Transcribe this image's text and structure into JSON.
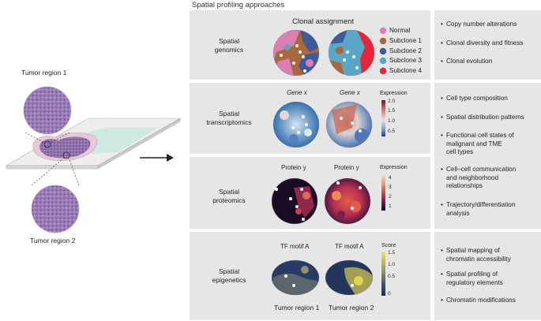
{
  "header": {
    "title": "Spatial profiling approaches"
  },
  "tissue": {
    "region1_label": "Tumor region 1",
    "region2_label": "Tumor region 2"
  },
  "rows": [
    {
      "label_line1": "Spatial",
      "label_line2": "genomics"
    },
    {
      "label_line1": "Spatial",
      "label_line2": "transcriptomics"
    },
    {
      "label_line1": "Spatial",
      "label_line2": "proteomics"
    },
    {
      "label_line1": "Spatial",
      "label_line2": "epigenetics"
    }
  ],
  "genomics": {
    "title": "Clonal assignment",
    "legend": [
      {
        "label": "Normal",
        "color": "#d97fb6"
      },
      {
        "label": "Subclone 1",
        "color": "#a9673a"
      },
      {
        "label": "Subclone 2",
        "color": "#3f5a9a"
      },
      {
        "label": "Subclone 3",
        "color": "#5aa6c9"
      },
      {
        "label": "Subclone 4",
        "color": "#e3263a"
      }
    ]
  },
  "transcriptomics": {
    "panel1_title": "Gene x",
    "panel2_title": "Gene x",
    "colorbar_title": "Expression",
    "ticks": [
      "2.0",
      "1.5",
      "1.0",
      "0.5"
    ]
  },
  "proteomics": {
    "panel1_title": "Protein y",
    "panel2_title": "Protein y",
    "colorbar_title": "Expression",
    "ticks": [
      "4",
      "3",
      "2",
      "1"
    ]
  },
  "epigenetics": {
    "panel1_title": "TF motif A",
    "panel2_title": "TF motif A",
    "colorbar_title": "Score",
    "ticks": [
      "1.5",
      "1.0",
      "0.5",
      "0"
    ],
    "bottom_label1": "Tumor region 1",
    "bottom_label2": "Tumor region 2"
  },
  "notes": {
    "genomics": [
      {
        "line1": "Copy number alterations"
      },
      {
        "line1": "Clonal diversity and fitness"
      },
      {
        "line1": "Clonal evolution"
      }
    ],
    "transcriptomics_proteomics": [
      {
        "line1": "Cell type composition"
      },
      {
        "line1": "Spatial distribution patterns"
      },
      {
        "line1": "Functional cell states of",
        "line2": "malignant and TME",
        "line3": "cell types"
      },
      {
        "line1": "Cell–cell communication",
        "line2": "and neighborhood",
        "line3": "relationships"
      },
      {
        "line1": "Trajectory/differentiation",
        "line2": "analysis"
      }
    ],
    "epigenetics": [
      {
        "line1": "Spatial mapping of",
        "line2": "chromatin accessibility"
      },
      {
        "line1": "Spatial profiling of",
        "line2": "regulatory elements"
      },
      {
        "line1": "Chromatin modifications"
      }
    ]
  },
  "colors": {
    "panel_bg": "#e6e6e6",
    "tissue_purple": "#8b6aa6",
    "slide_green": "#cfe9e2",
    "arrow": "#222222"
  }
}
